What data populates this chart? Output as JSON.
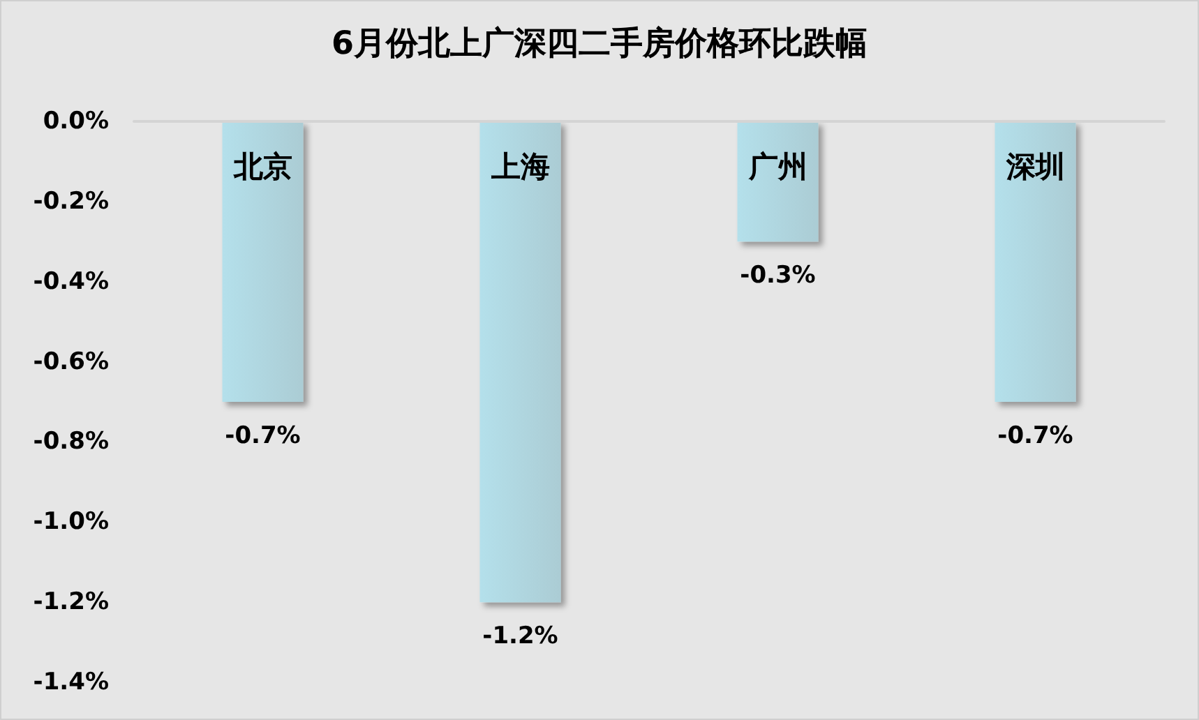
{
  "chart_data": {
    "type": "bar",
    "title": "6月份北上广深四二手房价格环比跌幅",
    "categories": [
      "北京",
      "上海",
      "广州",
      "深圳"
    ],
    "values": [
      -0.7,
      -1.2,
      -0.3,
      -0.7
    ],
    "value_labels": [
      "-0.7%",
      "-1.2%",
      "-0.3%",
      "-0.7%"
    ],
    "color": "#9dc3cd",
    "ylim": [
      -1.4,
      0
    ],
    "yticks": [
      {
        "value": 0,
        "label": "0.0%"
      },
      {
        "value": -0.2,
        "label": "-0.2%"
      },
      {
        "value": -0.4,
        "label": "-0.4%"
      },
      {
        "value": -0.6,
        "label": "-0.6%"
      },
      {
        "value": -0.8,
        "label": "-0.8%"
      },
      {
        "value": -1.0,
        "label": "-1.0%"
      },
      {
        "value": -1.2,
        "label": "-1.2%"
      },
      {
        "value": -1.4,
        "label": "-1.4%"
      }
    ],
    "grid": false
  }
}
